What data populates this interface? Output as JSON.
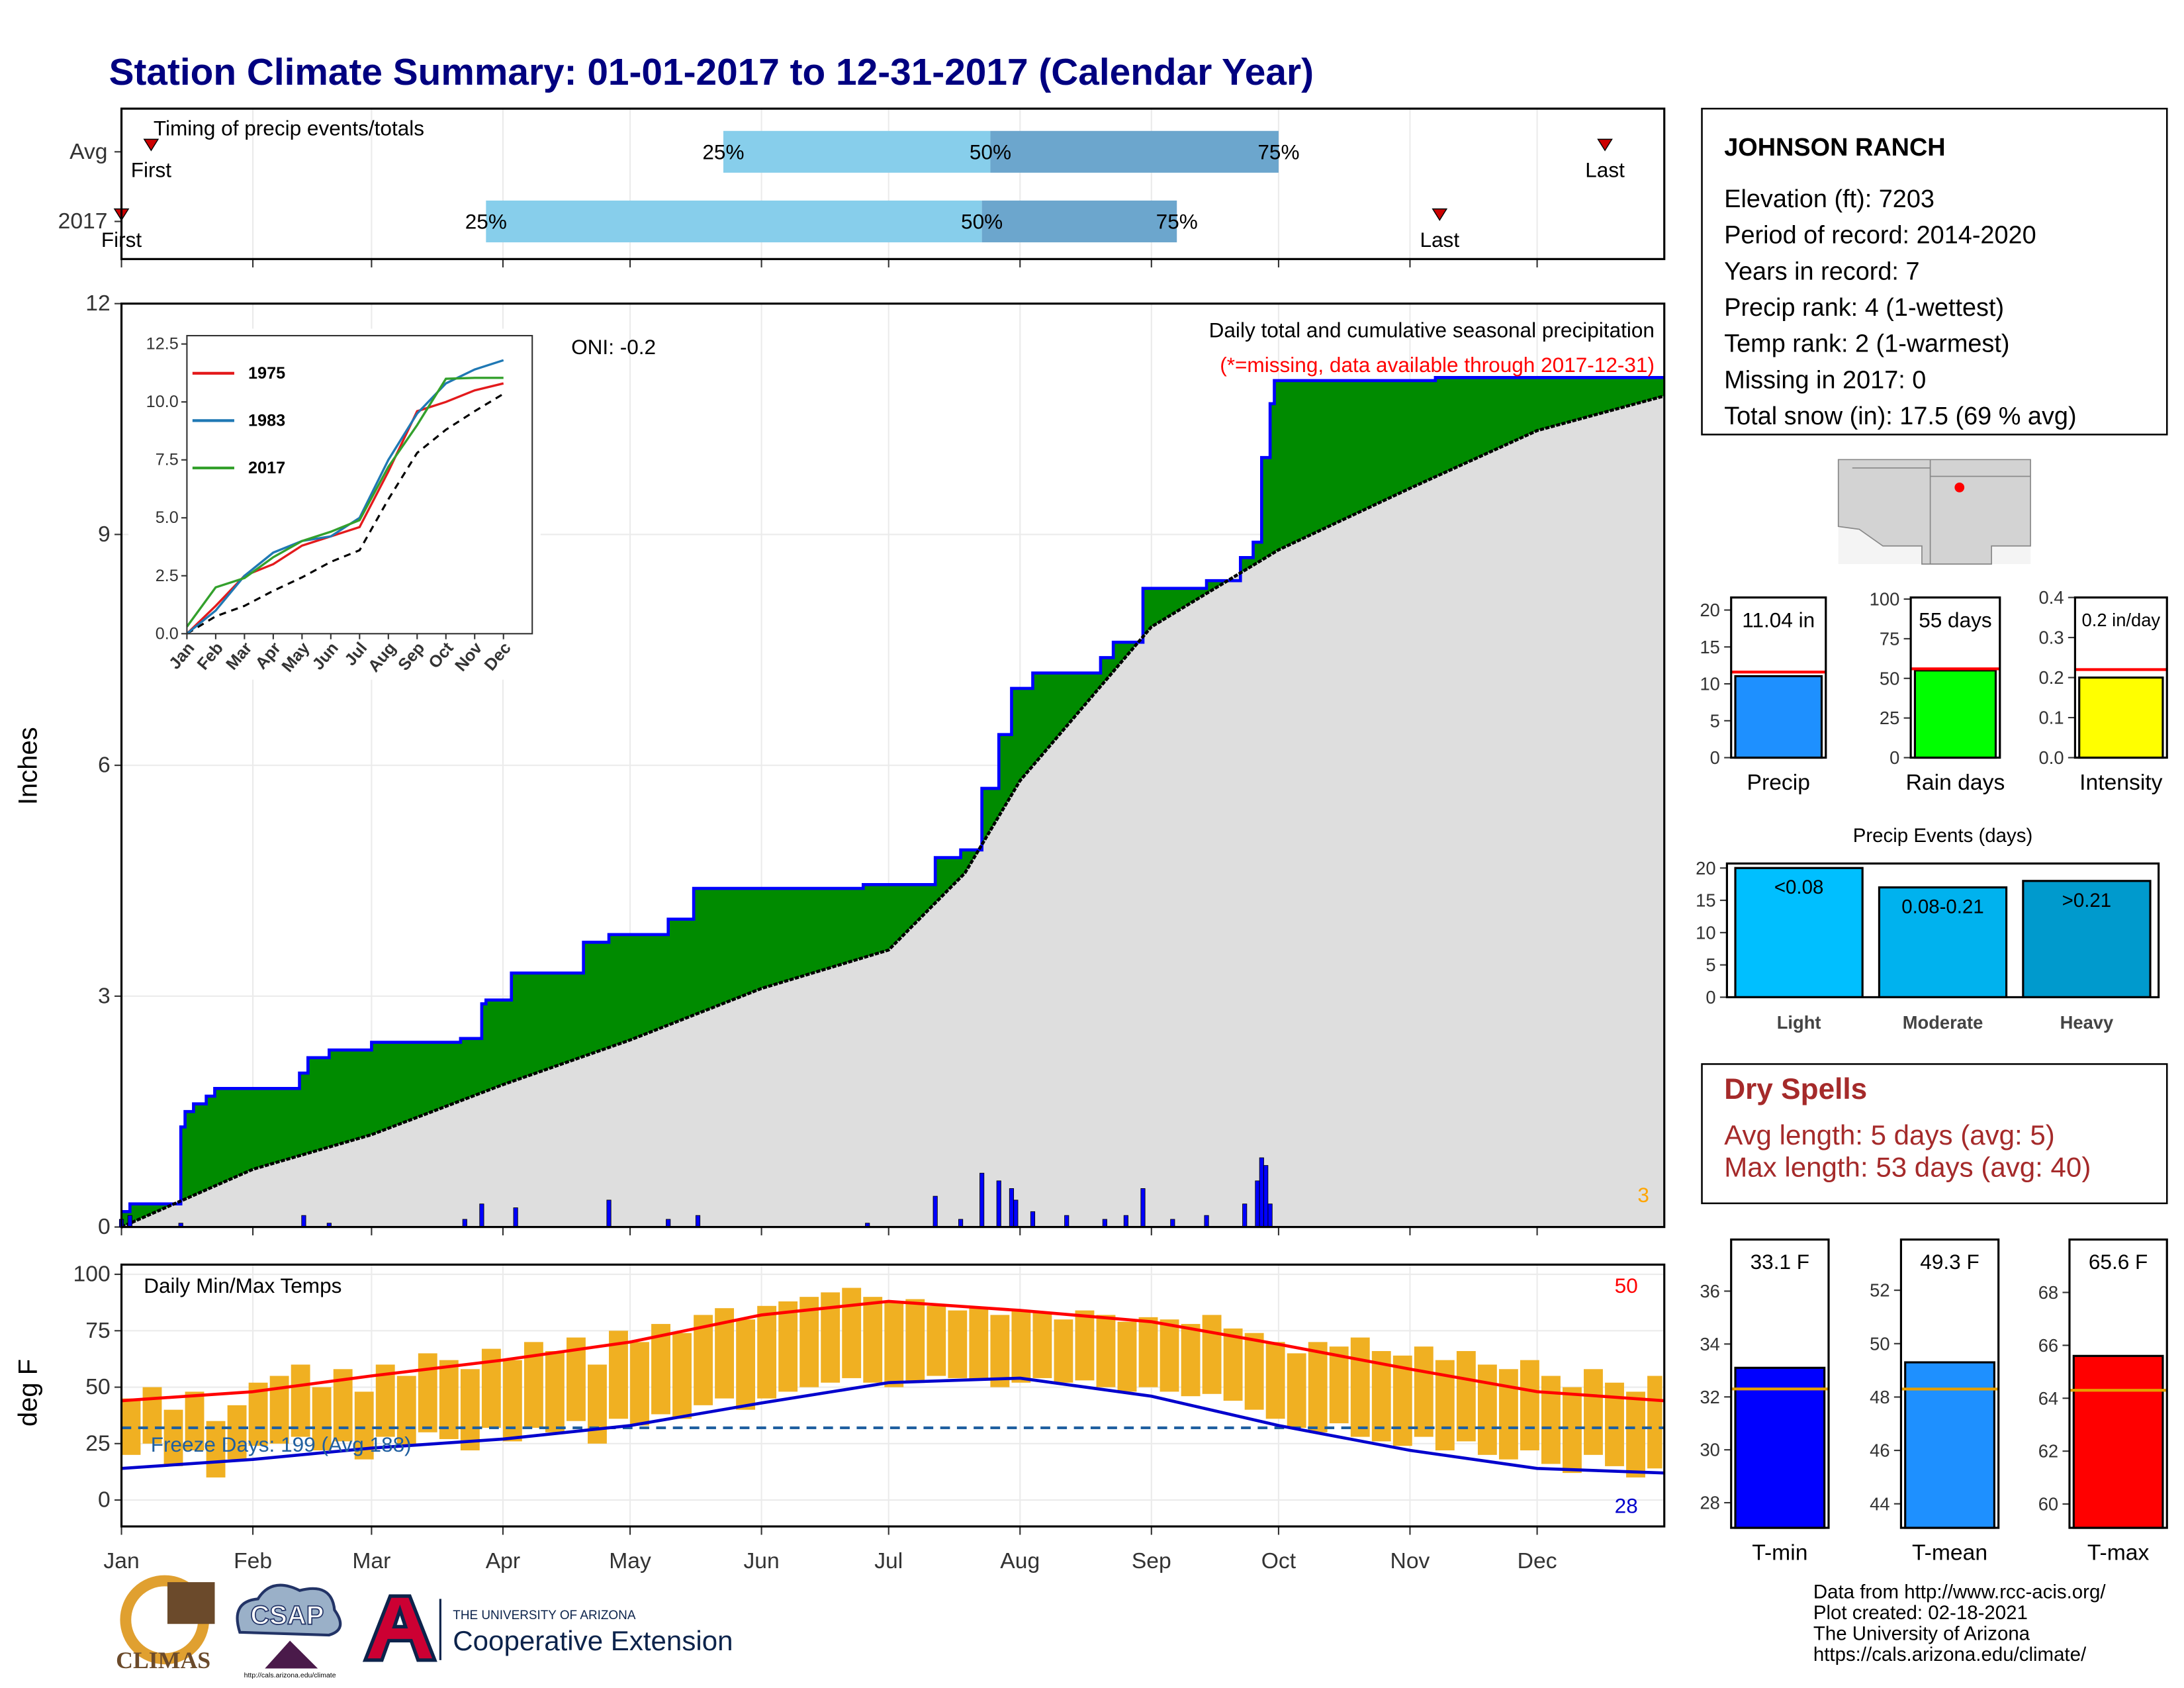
{
  "header": {
    "title": "Station Climate Summary: 01-01-2017 to 12-31-2017 (Calendar Year)"
  },
  "station": {
    "name": "JOHNSON RANCH",
    "lines": [
      "Elevation (ft): 7203",
      "Period of record: 2014-2020",
      "Years in record: 7",
      "Precip rank: 4 (1-wettest)",
      "Temp rank: 2 (1-warmest)",
      "Missing in 2017: 0",
      "Total snow (in): 17.5 (69 % avg)"
    ]
  },
  "dry_spells": {
    "title": "Dry Spells",
    "lines": [
      "Avg length: 5 days (avg: 5)",
      "Max length: 53 days (avg: 40)"
    ]
  },
  "footer": {
    "lines": [
      "Data from http://www.rcc-acis.org/",
      "Plot created: 02-18-2021",
      "The University of Arizona",
      "https://cals.arizona.edu/climate/"
    ]
  },
  "logos": {
    "climas": "CLIMAS",
    "csap": "CSAP",
    "csap_url": "http://cals.arizona.edu/climate",
    "university": "THE UNIVERSITY OF ARIZONA",
    "extension": "Cooperative Extension"
  },
  "chart_data": [
    {
      "type": "timing",
      "title": "Timing of precip events/totals",
      "categories": [
        "Avg",
        "2017"
      ],
      "xlim": [
        1,
        365
      ],
      "colors": [
        "#87ceeb",
        "#6ca6cd"
      ],
      "marker_color": "#cc0000",
      "series": [
        {
          "name": "First",
          "values": [
            8,
            1
          ]
        },
        {
          "name": "25%",
          "values": [
            143,
            87
          ]
        },
        {
          "name": "50%",
          "values": [
            206,
            204
          ]
        },
        {
          "name": "75%",
          "values": [
            274,
            250
          ]
        },
        {
          "name": "Last",
          "values": [
            351,
            312
          ]
        }
      ]
    },
    {
      "type": "cumulative_precip",
      "ylabel": "Inches",
      "title": "Daily total and cumulative seasonal precipitation",
      "subtitle": "(*=missing, data available through 2017-12-31)",
      "oni": "ONI: -0.2",
      "snow_count": "3",
      "xlim": [
        1,
        365
      ],
      "ylim": [
        0,
        12
      ],
      "yticks": [
        0,
        3,
        6,
        9,
        12
      ],
      "xticks": [
        1,
        32,
        60,
        91,
        121,
        152,
        182,
        213,
        244,
        274,
        305,
        335
      ],
      "grid": true,
      "cumulative": {
        "color": "#0000ff",
        "fill": "#008b00",
        "x": [
          1,
          3,
          15,
          16,
          18,
          21,
          23,
          43,
          45,
          50,
          60,
          81,
          86,
          87,
          93,
          110,
          116,
          130,
          136,
          176,
          193,
          199,
          204,
          208,
          211,
          216,
          232,
          235,
          242,
          257,
          265,
          268,
          270,
          272,
          273,
          311,
          365
        ],
        "values": [
          0.2,
          0.3,
          1.3,
          1.5,
          1.6,
          1.7,
          1.8,
          2.0,
          2.2,
          2.3,
          2.4,
          2.45,
          2.9,
          2.95,
          3.3,
          3.7,
          3.8,
          4.0,
          4.4,
          4.45,
          4.8,
          4.9,
          5.7,
          6.4,
          7.0,
          7.2,
          7.4,
          7.6,
          8.3,
          8.4,
          8.7,
          8.9,
          10.0,
          10.7,
          11.0,
          11.04,
          11.04
        ]
      },
      "average": {
        "color": "#000000",
        "fill": "#dedede",
        "x": [
          1,
          32,
          60,
          91,
          121,
          152,
          182,
          200,
          213,
          244,
          274,
          305,
          335,
          365
        ],
        "values": [
          0,
          0.75,
          1.2,
          1.85,
          2.43,
          3.1,
          3.6,
          4.6,
          5.8,
          7.8,
          8.8,
          9.6,
          10.35,
          10.8
        ]
      },
      "daily": {
        "color": "#0000ff",
        "x": [
          1,
          3,
          15,
          44,
          50,
          82,
          86,
          94,
          116,
          130,
          137,
          177,
          193,
          199,
          204,
          208,
          211,
          212,
          216,
          224,
          233,
          238,
          242,
          249,
          257,
          266,
          269,
          270,
          271,
          272
        ],
        "values": [
          0.1,
          0.15,
          0.05,
          0.15,
          0.05,
          0.1,
          0.3,
          0.25,
          0.35,
          0.1,
          0.15,
          0.05,
          0.4,
          0.1,
          0.7,
          0.6,
          0.5,
          0.35,
          0.2,
          0.15,
          0.1,
          0.15,
          0.5,
          0.1,
          0.15,
          0.3,
          0.6,
          0.9,
          0.8,
          0.3
        ]
      }
    },
    {
      "type": "line",
      "categories": [
        "Jan",
        "Feb",
        "Mar",
        "Apr",
        "May",
        "Jun",
        "Jul",
        "Aug",
        "Sep",
        "Oct",
        "Nov",
        "Dec"
      ],
      "ylim": [
        0,
        12.86
      ],
      "yticks": [
        {
          "value": 0,
          "label": "0.0"
        },
        2.5,
        {
          "value": 5,
          "label": "5.0"
        },
        7.5,
        {
          "value": 10,
          "label": "10.0"
        },
        12.5
      ],
      "series": [
        {
          "name": "1975",
          "color": "#e31a1c",
          "values": [
            0,
            1.2,
            2.5,
            3.0,
            3.8,
            4.2,
            4.6,
            7.0,
            9.6,
            10.0,
            10.5,
            10.8
          ]
        },
        {
          "name": "1983",
          "color": "#1f78b4",
          "values": [
            0,
            1.0,
            2.5,
            3.5,
            4.0,
            4.2,
            5.0,
            7.5,
            9.5,
            10.8,
            11.4,
            11.8
          ]
        },
        {
          "name": "2017",
          "color": "#33a02c",
          "values": [
            0.3,
            2.0,
            2.4,
            3.3,
            4.0,
            4.4,
            4.9,
            7.2,
            9.0,
            11.0,
            11.04,
            11.04
          ]
        }
      ],
      "average": {
        "color": "#000000",
        "values": [
          0,
          0.75,
          1.2,
          1.85,
          2.43,
          3.1,
          3.6,
          5.8,
          7.8,
          8.8,
          9.6,
          10.35
        ]
      }
    },
    {
      "type": "temperature",
      "title": "Daily Min/Max Temps",
      "ylabel": "deg F",
      "max_label": "50",
      "min_label": "28",
      "xlim": [
        1,
        365
      ],
      "ylim": [
        -11.7,
        104.3
      ],
      "yticks": [
        0,
        25,
        50,
        75,
        100
      ],
      "grid": true,
      "xticks": [
        {
          "value": 1,
          "label": "Jan"
        },
        {
          "value": 32,
          "label": "Feb"
        },
        {
          "value": 60,
          "label": "Mar"
        },
        {
          "value": 91,
          "label": "Apr"
        },
        {
          "value": 121,
          "label": "May"
        },
        {
          "value": 152,
          "label": "Jun"
        },
        {
          "value": 182,
          "label": "Jul"
        },
        {
          "value": 213,
          "label": "Aug"
        },
        {
          "value": 244,
          "label": "Sep"
        },
        {
          "value": 274,
          "label": "Oct"
        },
        {
          "value": 305,
          "label": "Nov"
        },
        {
          "value": 335,
          "label": "Dec"
        }
      ],
      "x": [
        1,
        6,
        11,
        16,
        21,
        26,
        31,
        36,
        41,
        46,
        51,
        56,
        61,
        66,
        71,
        76,
        81,
        86,
        91,
        96,
        101,
        106,
        111,
        116,
        121,
        126,
        131,
        136,
        141,
        146,
        151,
        156,
        161,
        166,
        171,
        176,
        181,
        186,
        191,
        196,
        201,
        206,
        211,
        216,
        221,
        226,
        231,
        236,
        241,
        246,
        251,
        256,
        261,
        266,
        271,
        276,
        281,
        286,
        291,
        296,
        301,
        306,
        311,
        316,
        321,
        326,
        331,
        336,
        341,
        346,
        351,
        356,
        361
      ],
      "range_color": "#f0b022",
      "tmax": {
        "values": [
          45,
          50,
          40,
          48,
          35,
          42,
          52,
          55,
          60,
          50,
          58,
          48,
          60,
          55,
          65,
          62,
          58,
          67,
          62,
          70,
          66,
          72,
          60,
          75,
          70,
          78,
          74,
          82,
          85,
          80,
          86,
          88,
          90,
          92,
          94,
          90,
          88,
          89,
          86,
          84,
          85,
          82,
          84,
          83,
          80,
          84,
          82,
          79,
          81,
          80,
          78,
          82,
          76,
          74,
          70,
          65,
          70,
          68,
          72,
          66,
          64,
          68,
          62,
          66,
          60,
          58,
          62,
          55,
          50,
          58,
          52,
          48,
          55
        ]
      },
      "tmin": {
        "values": [
          20,
          25,
          15,
          22,
          10,
          18,
          24,
          25,
          28,
          22,
          26,
          18,
          28,
          24,
          30,
          27,
          22,
          32,
          26,
          32,
          30,
          35,
          25,
          36,
          33,
          38,
          36,
          42,
          45,
          40,
          45,
          48,
          50,
          52,
          54,
          52,
          50,
          52,
          55,
          54,
          53,
          50,
          52,
          54,
          52,
          53,
          50,
          48,
          50,
          48,
          46,
          47,
          44,
          40,
          36,
          32,
          30,
          34,
          28,
          26,
          24,
          28,
          22,
          26,
          20,
          18,
          22,
          16,
          12,
          20,
          15,
          10,
          14
        ]
      },
      "avg_max": {
        "color": "#ff0000",
        "x": [
          1,
          32,
          60,
          91,
          121,
          152,
          182,
          213,
          244,
          274,
          305,
          335,
          365
        ],
        "values": [
          44,
          48,
          55,
          62,
          70,
          82,
          88,
          84,
          79,
          69,
          58,
          48,
          44
        ]
      },
      "avg_min": {
        "color": "#0000cd",
        "x": [
          1,
          32,
          60,
          91,
          121,
          152,
          182,
          213,
          244,
          274,
          305,
          335,
          365
        ],
        "values": [
          14,
          18,
          23,
          27,
          33,
          43,
          52,
          54,
          46,
          33,
          22,
          14,
          12
        ]
      },
      "freeze": {
        "value": 32,
        "label": "Freeze Days: 199 (Avg 188)",
        "color": "#1f5fa0"
      }
    },
    {
      "type": "bar",
      "categories": [
        "Precip"
      ],
      "values": [
        11.04
      ],
      "value_labels": [
        "11.04 in"
      ],
      "color": "#1e90ff",
      "average": 11.6,
      "average_color": "#ff0000",
      "ylim": [
        0,
        21.7
      ],
      "yticks": [
        0,
        5,
        10,
        15,
        20
      ]
    },
    {
      "type": "bar",
      "categories": [
        "Rain days"
      ],
      "values": [
        55
      ],
      "value_labels": [
        "55 days"
      ],
      "color": "#00ff00",
      "average": 56,
      "average_color": "#ff0000",
      "ylim": [
        0,
        101
      ],
      "yticks": [
        0,
        25,
        50,
        75,
        100
      ]
    },
    {
      "type": "bar",
      "categories": [
        "Intensity"
      ],
      "values": [
        0.2
      ],
      "value_labels": [
        "0.2 in/day"
      ],
      "color": "#ffff00",
      "average": 0.22,
      "average_color": "#ff0000",
      "ylim": [
        0,
        0.4
      ],
      "yticks": [
        {
          "value": 0,
          "label": "0.0"
        },
        0.1,
        0.2,
        0.3,
        0.4
      ]
    },
    {
      "type": "bar",
      "title": "Precip Events (days)",
      "categories": [
        "Light",
        "Moderate",
        "Heavy"
      ],
      "values": [
        20,
        17,
        18
      ],
      "bin_labels": [
        "<0.08",
        "0.08-0.21",
        ">0.21"
      ],
      "colors": [
        "#00bfff",
        "#00b2ee",
        "#009acd"
      ],
      "ylim": [
        0,
        20.7
      ],
      "yticks": [
        0,
        5,
        10,
        15,
        20
      ]
    },
    {
      "type": "bar",
      "categories": [
        "T-min"
      ],
      "values": [
        33.1
      ],
      "value_labels": [
        "33.1 F"
      ],
      "color": "#0000ff",
      "average": 32.3,
      "average_color": "#e69f00",
      "ylim": [
        27.05,
        37.95
      ],
      "yticks": [
        28,
        30,
        32,
        34,
        36
      ]
    },
    {
      "type": "bar",
      "categories": [
        "T-mean"
      ],
      "values": [
        49.3
      ],
      "value_labels": [
        "49.3 F"
      ],
      "color": "#1e90ff",
      "average": 48.3,
      "average_color": "#e69f00",
      "ylim": [
        43.1,
        53.9
      ],
      "yticks": [
        44,
        46,
        48,
        50,
        52
      ]
    },
    {
      "type": "bar",
      "categories": [
        "T-max"
      ],
      "values": [
        65.6
      ],
      "value_labels": [
        "65.6 F"
      ],
      "color": "#ff0000",
      "average": 64.3,
      "average_color": "#e69f00",
      "ylim": [
        59.1,
        70.0
      ],
      "yticks": [
        60,
        62,
        64,
        66,
        68
      ]
    }
  ]
}
